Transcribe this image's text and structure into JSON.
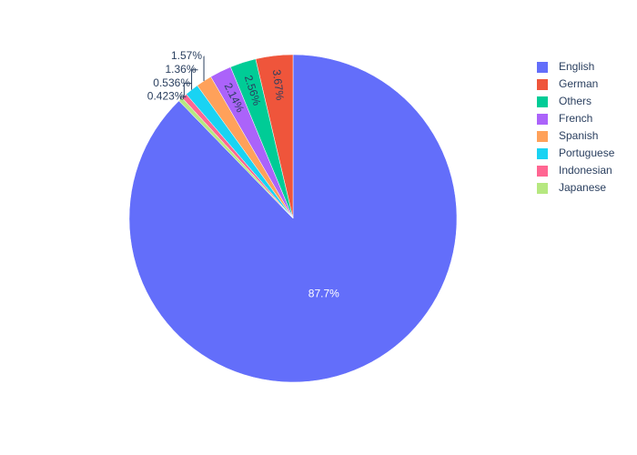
{
  "chart_data": {
    "type": "pie",
    "categories": [
      "English",
      "German",
      "Others",
      "French",
      "Spanish",
      "Portuguese",
      "Indonesian",
      "Japanese"
    ],
    "values": [
      87.7,
      3.67,
      2.56,
      2.14,
      1.57,
      1.36,
      0.536,
      0.423
    ],
    "value_labels": [
      "87.7%",
      "3.67%",
      "2.56%",
      "2.14%",
      "1.57%",
      "1.36%",
      "0.536%",
      "0.423%"
    ],
    "colors": [
      "#636efa",
      "#ef553b",
      "#00cc96",
      "#ab63fa",
      "#ffa15a",
      "#19d3f3",
      "#ff6692",
      "#b6e880"
    ],
    "legend": "top-right"
  }
}
